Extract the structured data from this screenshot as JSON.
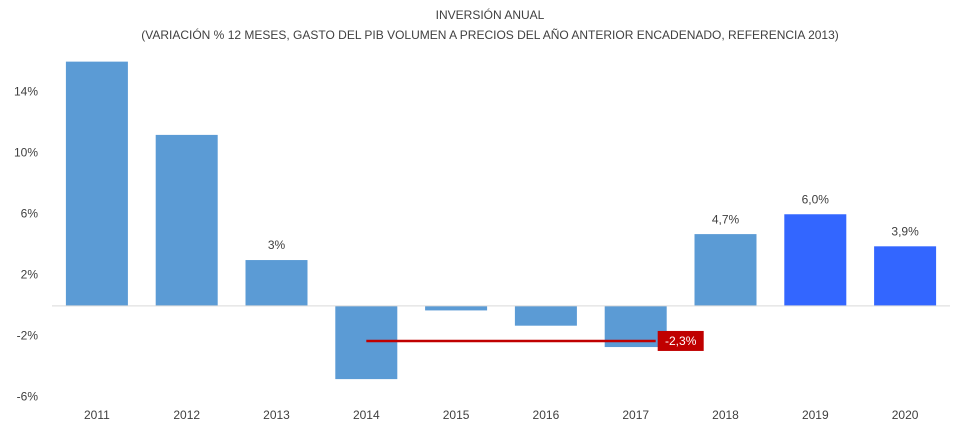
{
  "chart_data": {
    "type": "bar",
    "title": "INVERSIÓN ANUAL",
    "subtitle": "(VARIACIÓN % 12 MESES, GASTO DEL PIB VOLUMEN A PRECIOS DEL AÑO ANTERIOR ENCADENADO, REFERENCIA 2013)",
    "categories": [
      "2011",
      "2012",
      "2013",
      "2014",
      "2015",
      "2016",
      "2017",
      "2018",
      "2019",
      "2020"
    ],
    "values": [
      16,
      11.2,
      3,
      -4.8,
      -0.3,
      -1.3,
      -2.7,
      4.7,
      6.0,
      3.9
    ],
    "value_labels": [
      null,
      null,
      "3%",
      null,
      null,
      null,
      null,
      "4,7%",
      "6,0%",
      "3,9%"
    ],
    "colors": [
      "#5b9bd5",
      "#5b9bd5",
      "#5b9bd5",
      "#5b9bd5",
      "#5b9bd5",
      "#5b9bd5",
      "#5b9bd5",
      "#5b9bd5",
      "#3366ff",
      "#3366ff"
    ],
    "ylim": [
      -6.3,
      16.5
    ],
    "yticks": [
      {
        "value": -6,
        "label": "-6%"
      },
      {
        "value": -2,
        "label": "-2%"
      },
      {
        "value": 2,
        "label": "2%"
      },
      {
        "value": 6,
        "label": "6%"
      },
      {
        "value": 10,
        "label": "10%"
      },
      {
        "value": 14,
        "label": "14%"
      }
    ],
    "grid": false,
    "annotations": [
      {
        "text": "-2,3%",
        "value": -2.3,
        "x": [
          "2014",
          "2017"
        ],
        "color": "#c00000"
      }
    ]
  }
}
